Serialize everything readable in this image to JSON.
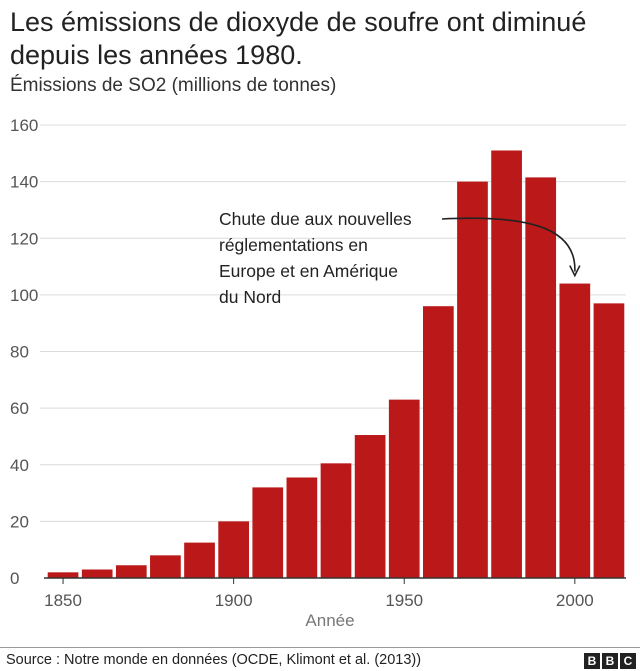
{
  "header": {
    "title": "Les émissions de dioxyde de soufre ont diminué depuis les années 1980.",
    "subtitle": "Émissions de SO2 (millions de tonnes)"
  },
  "footer": {
    "source": "Source : Notre monde en données (OCDE, Klimont et al. (2013))",
    "logo": [
      "B",
      "B",
      "C"
    ]
  },
  "chart_data": {
    "type": "bar",
    "title": "Les émissions de dioxyde de soufre ont diminué depuis les années 1980.",
    "subtitle": "Émissions de SO2 (millions de tonnes)",
    "xlabel": "Année",
    "ylabel": "",
    "ylim": [
      0,
      160
    ],
    "xlim": [
      1845,
      2015
    ],
    "yticks": [
      0,
      20,
      40,
      60,
      80,
      100,
      120,
      140,
      160
    ],
    "xticks": [
      1850,
      1900,
      1950,
      2000
    ],
    "grid": true,
    "color": "#bb1919",
    "categories": [
      1850,
      1860,
      1870,
      1880,
      1890,
      1900,
      1910,
      1920,
      1930,
      1940,
      1950,
      1960,
      1970,
      1980,
      1990,
      2000,
      2010
    ],
    "values": [
      2,
      3,
      4.5,
      8,
      12.5,
      20,
      32,
      35.5,
      40.5,
      50.5,
      63,
      96,
      140,
      151,
      141.5,
      104,
      97
    ],
    "annotation": {
      "lines": [
        "Chute due aux nouvelles",
        "réglementations en",
        "Europe et en Amérique",
        "du Nord"
      ],
      "target_year": 2000
    }
  }
}
